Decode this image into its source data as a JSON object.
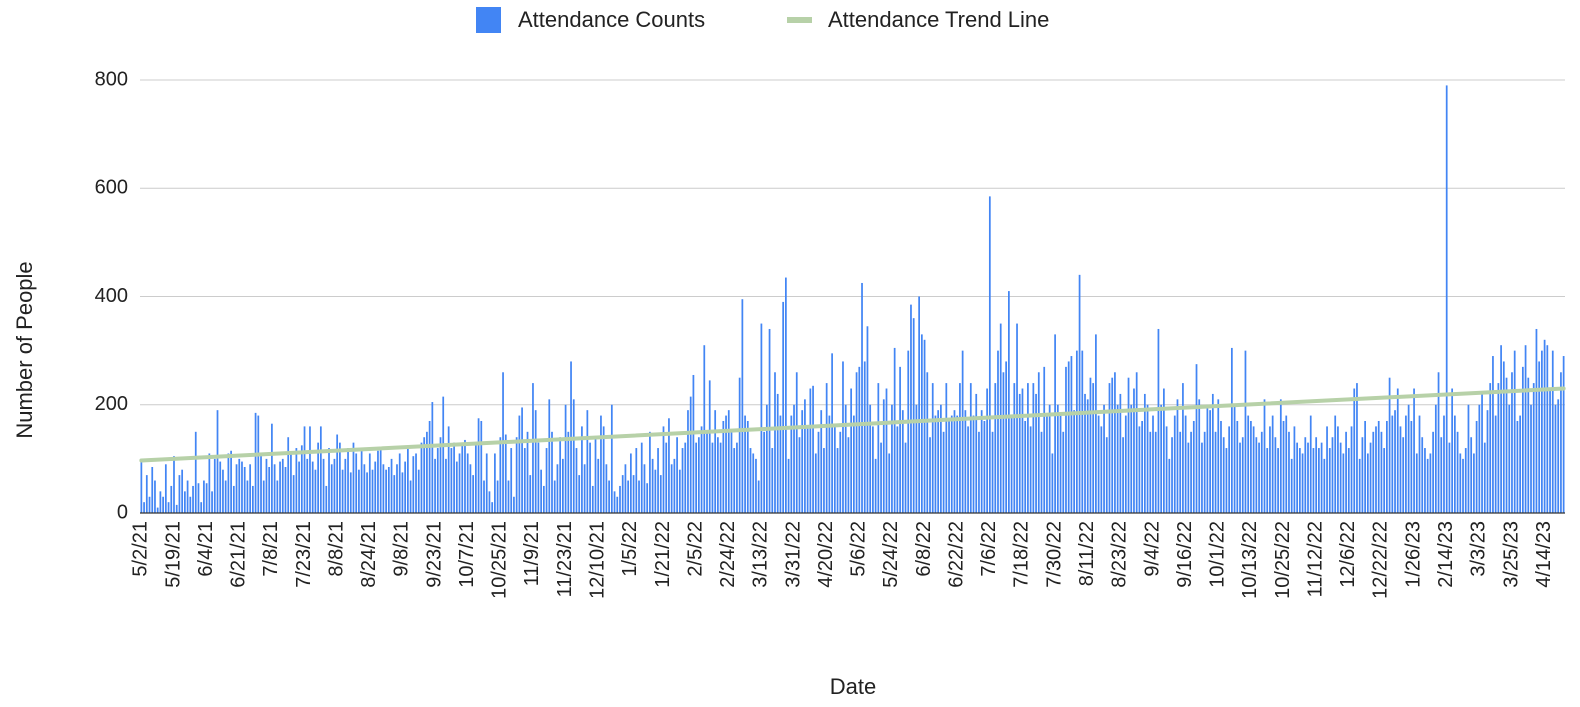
{
  "chart_data": {
    "type": "bar",
    "x_label": "Date",
    "y_label": "Number of People",
    "ylim": [
      0,
      800
    ],
    "yticks": [
      0,
      200,
      400,
      600,
      800
    ],
    "grid": true,
    "legend": "top",
    "categories": [
      "5/2/21",
      null,
      null,
      null,
      null,
      null,
      null,
      null,
      null,
      null,
      null,
      null,
      "5/19/21",
      null,
      null,
      null,
      null,
      null,
      null,
      null,
      null,
      null,
      null,
      null,
      "6/4/21",
      null,
      null,
      null,
      null,
      null,
      null,
      null,
      null,
      null,
      null,
      null,
      "6/21/21",
      null,
      null,
      null,
      null,
      null,
      null,
      null,
      null,
      null,
      null,
      null,
      "7/8/21",
      null,
      null,
      null,
      null,
      null,
      null,
      null,
      null,
      null,
      null,
      null,
      "7/23/21",
      null,
      null,
      null,
      null,
      null,
      null,
      null,
      null,
      null,
      null,
      null,
      "8/8/21",
      null,
      null,
      null,
      null,
      null,
      null,
      null,
      null,
      null,
      null,
      null,
      "8/24/21",
      null,
      null,
      null,
      null,
      null,
      null,
      null,
      null,
      null,
      null,
      null,
      "9/8/21",
      null,
      null,
      null,
      null,
      null,
      null,
      null,
      null,
      null,
      null,
      null,
      "9/23/21",
      null,
      null,
      null,
      null,
      null,
      null,
      null,
      null,
      null,
      null,
      null,
      "10/7/21",
      null,
      null,
      null,
      null,
      null,
      null,
      null,
      null,
      null,
      null,
      null,
      "10/25/21",
      null,
      null,
      null,
      null,
      null,
      null,
      null,
      null,
      null,
      null,
      null,
      "11/9/21",
      null,
      null,
      null,
      null,
      null,
      null,
      null,
      null,
      null,
      null,
      null,
      "11/23/21",
      null,
      null,
      null,
      null,
      null,
      null,
      null,
      null,
      null,
      null,
      null,
      "12/10/21",
      null,
      null,
      null,
      null,
      null,
      null,
      null,
      null,
      null,
      null,
      null,
      "1/5/22",
      null,
      null,
      null,
      null,
      null,
      null,
      null,
      null,
      null,
      null,
      null,
      "1/21/22",
      null,
      null,
      null,
      null,
      null,
      null,
      null,
      null,
      null,
      null,
      null,
      "2/5/22",
      null,
      null,
      null,
      null,
      null,
      null,
      null,
      null,
      null,
      null,
      null,
      "2/24/22",
      null,
      null,
      null,
      null,
      null,
      null,
      null,
      null,
      null,
      null,
      null,
      "3/13/22",
      null,
      null,
      null,
      null,
      null,
      null,
      null,
      null,
      null,
      null,
      null,
      "3/31/22",
      null,
      null,
      null,
      null,
      null,
      null,
      null,
      null,
      null,
      null,
      null,
      "4/20/22",
      null,
      null,
      null,
      null,
      null,
      null,
      null,
      null,
      null,
      null,
      null,
      "5/6/22",
      null,
      null,
      null,
      null,
      null,
      null,
      null,
      null,
      null,
      null,
      null,
      "5/24/22",
      null,
      null,
      null,
      null,
      null,
      null,
      null,
      null,
      null,
      null,
      null,
      "6/8/22",
      null,
      null,
      null,
      null,
      null,
      null,
      null,
      null,
      null,
      null,
      null,
      "6/22/22",
      null,
      null,
      null,
      null,
      null,
      null,
      null,
      null,
      null,
      null,
      null,
      "7/6/22",
      null,
      null,
      null,
      null,
      null,
      null,
      null,
      null,
      null,
      null,
      null,
      "7/18/22",
      null,
      null,
      null,
      null,
      null,
      null,
      null,
      null,
      null,
      null,
      null,
      "7/30/22",
      null,
      null,
      null,
      null,
      null,
      null,
      null,
      null,
      null,
      null,
      null,
      "8/11/22",
      null,
      null,
      null,
      null,
      null,
      null,
      null,
      null,
      null,
      null,
      null,
      "8/23/22",
      null,
      null,
      null,
      null,
      null,
      null,
      null,
      null,
      null,
      null,
      null,
      "9/4/22",
      null,
      null,
      null,
      null,
      null,
      null,
      null,
      null,
      null,
      null,
      null,
      "9/16/22",
      null,
      null,
      null,
      null,
      null,
      null,
      null,
      null,
      null,
      null,
      null,
      "10/1/22",
      null,
      null,
      null,
      null,
      null,
      null,
      null,
      null,
      null,
      null,
      null,
      "10/13/22",
      null,
      null,
      null,
      null,
      null,
      null,
      null,
      null,
      null,
      null,
      null,
      "10/25/22",
      null,
      null,
      null,
      null,
      null,
      null,
      null,
      null,
      null,
      null,
      null,
      "11/12/22",
      null,
      null,
      null,
      null,
      null,
      null,
      null,
      null,
      null,
      null,
      null,
      "12/6/22",
      null,
      null,
      null,
      null,
      null,
      null,
      null,
      null,
      null,
      null,
      null,
      "12/22/22",
      null,
      null,
      null,
      null,
      null,
      null,
      null,
      null,
      null,
      null,
      null,
      "1/26/23",
      null,
      null,
      null,
      null,
      null,
      null,
      null,
      null,
      null,
      null,
      null,
      "2/14/23",
      null,
      null,
      null,
      null,
      null,
      null,
      null,
      null,
      null,
      null,
      null,
      "3/3/23",
      null,
      null,
      null,
      null,
      null,
      null,
      null,
      null,
      null,
      null,
      null,
      "3/25/23",
      null,
      null,
      null,
      null,
      null,
      null,
      null,
      null,
      null,
      null,
      null,
      "4/14/23",
      null,
      null,
      null,
      null,
      null,
      null,
      null
    ],
    "series": [
      {
        "name": "Attendance Counts",
        "color": "#4285f4",
        "values": [
          100,
          20,
          70,
          30,
          85,
          60,
          10,
          40,
          30,
          90,
          20,
          50,
          105,
          15,
          70,
          80,
          40,
          60,
          30,
          50,
          150,
          55,
          20,
          60,
          55,
          110,
          40,
          100,
          190,
          95,
          80,
          60,
          110,
          115,
          50,
          90,
          100,
          95,
          85,
          60,
          90,
          50,
          185,
          180,
          110,
          60,
          100,
          85,
          165,
          90,
          60,
          95,
          100,
          85,
          140,
          110,
          70,
          120,
          95,
          125,
          160,
          100,
          160,
          95,
          80,
          130,
          160,
          100,
          50,
          120,
          90,
          100,
          145,
          130,
          80,
          100,
          120,
          75,
          130,
          110,
          80,
          120,
          90,
          75,
          110,
          80,
          95,
          115,
          120,
          90,
          80,
          85,
          100,
          70,
          90,
          110,
          75,
          95,
          120,
          60,
          105,
          110,
          80,
          130,
          140,
          150,
          170,
          205,
          100,
          120,
          140,
          215,
          100,
          160,
          120,
          130,
          95,
          110,
          125,
          135,
          110,
          90,
          70,
          130,
          175,
          170,
          60,
          110,
          40,
          20,
          110,
          60,
          140,
          260,
          145,
          60,
          120,
          30,
          140,
          180,
          195,
          120,
          150,
          70,
          240,
          190,
          130,
          80,
          50,
          120,
          210,
          150,
          60,
          90,
          140,
          100,
          200,
          150,
          280,
          210,
          120,
          70,
          160,
          90,
          190,
          130,
          50,
          140,
          100,
          180,
          160,
          90,
          60,
          200,
          40,
          30,
          50,
          70,
          90,
          60,
          110,
          70,
          120,
          60,
          130,
          90,
          55,
          150,
          100,
          80,
          120,
          70,
          160,
          130,
          175,
          90,
          100,
          140,
          80,
          120,
          130,
          190,
          215,
          255,
          130,
          140,
          160,
          310,
          150,
          245,
          130,
          190,
          140,
          130,
          170,
          180,
          190,
          150,
          120,
          130,
          250,
          395,
          180,
          170,
          120,
          110,
          100,
          60,
          350,
          150,
          200,
          340,
          120,
          260,
          220,
          180,
          390,
          435,
          100,
          180,
          200,
          260,
          140,
          190,
          210,
          160,
          230,
          235,
          110,
          150,
          190,
          120,
          240,
          180,
          295,
          160,
          120,
          150,
          280,
          200,
          140,
          230,
          180,
          260,
          270,
          425,
          280,
          345,
          200,
          160,
          100,
          240,
          130,
          210,
          230,
          110,
          200,
          305,
          160,
          270,
          190,
          130,
          300,
          385,
          360,
          200,
          400,
          330,
          320,
          260,
          140,
          240,
          180,
          190,
          200,
          150,
          240,
          170,
          180,
          190,
          180,
          240,
          300,
          190,
          160,
          240,
          180,
          220,
          150,
          190,
          170,
          230,
          585,
          150,
          240,
          300,
          350,
          260,
          280,
          410,
          180,
          240,
          350,
          220,
          230,
          170,
          240,
          160,
          240,
          220,
          260,
          150,
          270,
          180,
          200,
          110,
          330,
          200,
          180,
          150,
          270,
          280,
          290,
          190,
          300,
          440,
          300,
          220,
          210,
          250,
          240,
          330,
          180,
          160,
          200,
          140,
          240,
          250,
          260,
          200,
          220,
          140,
          180,
          250,
          200,
          230,
          260,
          160,
          170,
          220,
          200,
          150,
          180,
          150,
          340,
          200,
          230,
          160,
          100,
          140,
          180,
          210,
          150,
          240,
          180,
          130,
          150,
          170,
          275,
          210,
          130,
          150,
          200,
          190,
          220,
          150,
          210,
          170,
          140,
          120,
          160,
          305,
          200,
          170,
          130,
          140,
          300,
          180,
          170,
          160,
          140,
          130,
          150,
          210,
          120,
          160,
          180,
          140,
          120,
          210,
          170,
          180,
          150,
          100,
          160,
          130,
          120,
          110,
          140,
          130,
          180,
          120,
          140,
          120,
          130,
          100,
          160,
          120,
          140,
          180,
          160,
          130,
          110,
          150,
          120,
          160,
          230,
          240,
          100,
          140,
          170,
          110,
          130,
          150,
          160,
          170,
          150,
          120,
          170,
          250,
          180,
          190,
          230,
          160,
          140,
          180,
          200,
          170,
          230,
          110,
          180,
          140,
          120,
          100,
          110,
          150,
          200,
          260,
          140,
          180,
          790,
          130,
          230,
          180,
          150,
          110,
          100,
          120,
          200,
          140,
          110,
          170,
          200,
          220,
          130,
          190,
          240,
          290,
          180,
          240,
          310,
          280,
          250,
          200,
          260,
          300,
          170,
          180,
          270,
          310,
          250,
          200,
          240,
          340,
          280,
          300,
          320,
          310,
          230,
          300,
          200,
          210,
          260,
          290
        ]
      }
    ],
    "trendline": {
      "name": "Attendance Trend Line",
      "color": "#b7d1a8",
      "values": [
        97,
        230
      ]
    }
  }
}
